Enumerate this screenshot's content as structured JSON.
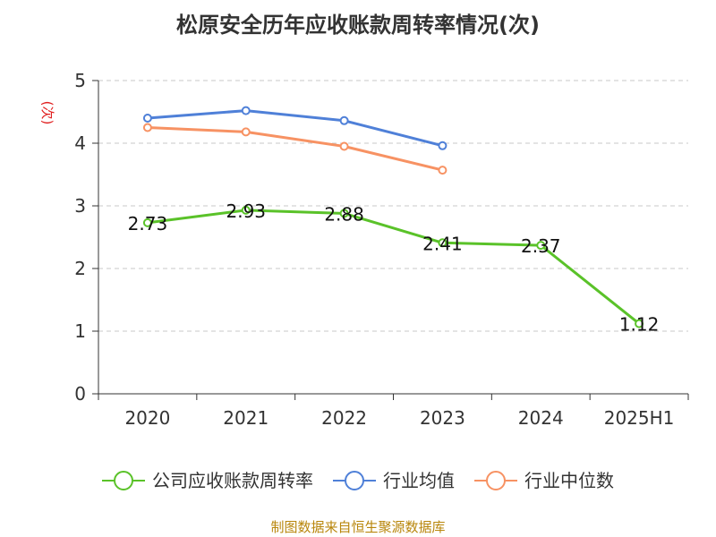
{
  "chart_data": {
    "type": "line",
    "title": "松原安全历年应收账款周转率情况(次)",
    "ylabel": "(次)",
    "xlabel": "",
    "categories": [
      "2020",
      "2021",
      "2022",
      "2023",
      "2024",
      "2025H1"
    ],
    "ylim": [
      0,
      5
    ],
    "yticks": [
      0,
      1,
      2,
      3,
      4,
      5
    ],
    "grid": true,
    "legend_position": "bottom",
    "series": [
      {
        "name": "公司应收账款周转率",
        "color": "#5ac229",
        "values": [
          2.73,
          2.93,
          2.88,
          2.41,
          2.37,
          1.12
        ],
        "labels": [
          "2.73",
          "2.93",
          "2.88",
          "2.41",
          "2.37",
          "1.12"
        ]
      },
      {
        "name": "行业均值",
        "color": "#4f80d8",
        "values": [
          4.4,
          4.52,
          4.36,
          3.96,
          null,
          null
        ]
      },
      {
        "name": "行业中位数",
        "color": "#f79263",
        "values": [
          4.25,
          4.18,
          3.95,
          3.57,
          null,
          null
        ]
      }
    ]
  },
  "footer": {
    "source": "制图数据来自恒生聚源数据库"
  }
}
